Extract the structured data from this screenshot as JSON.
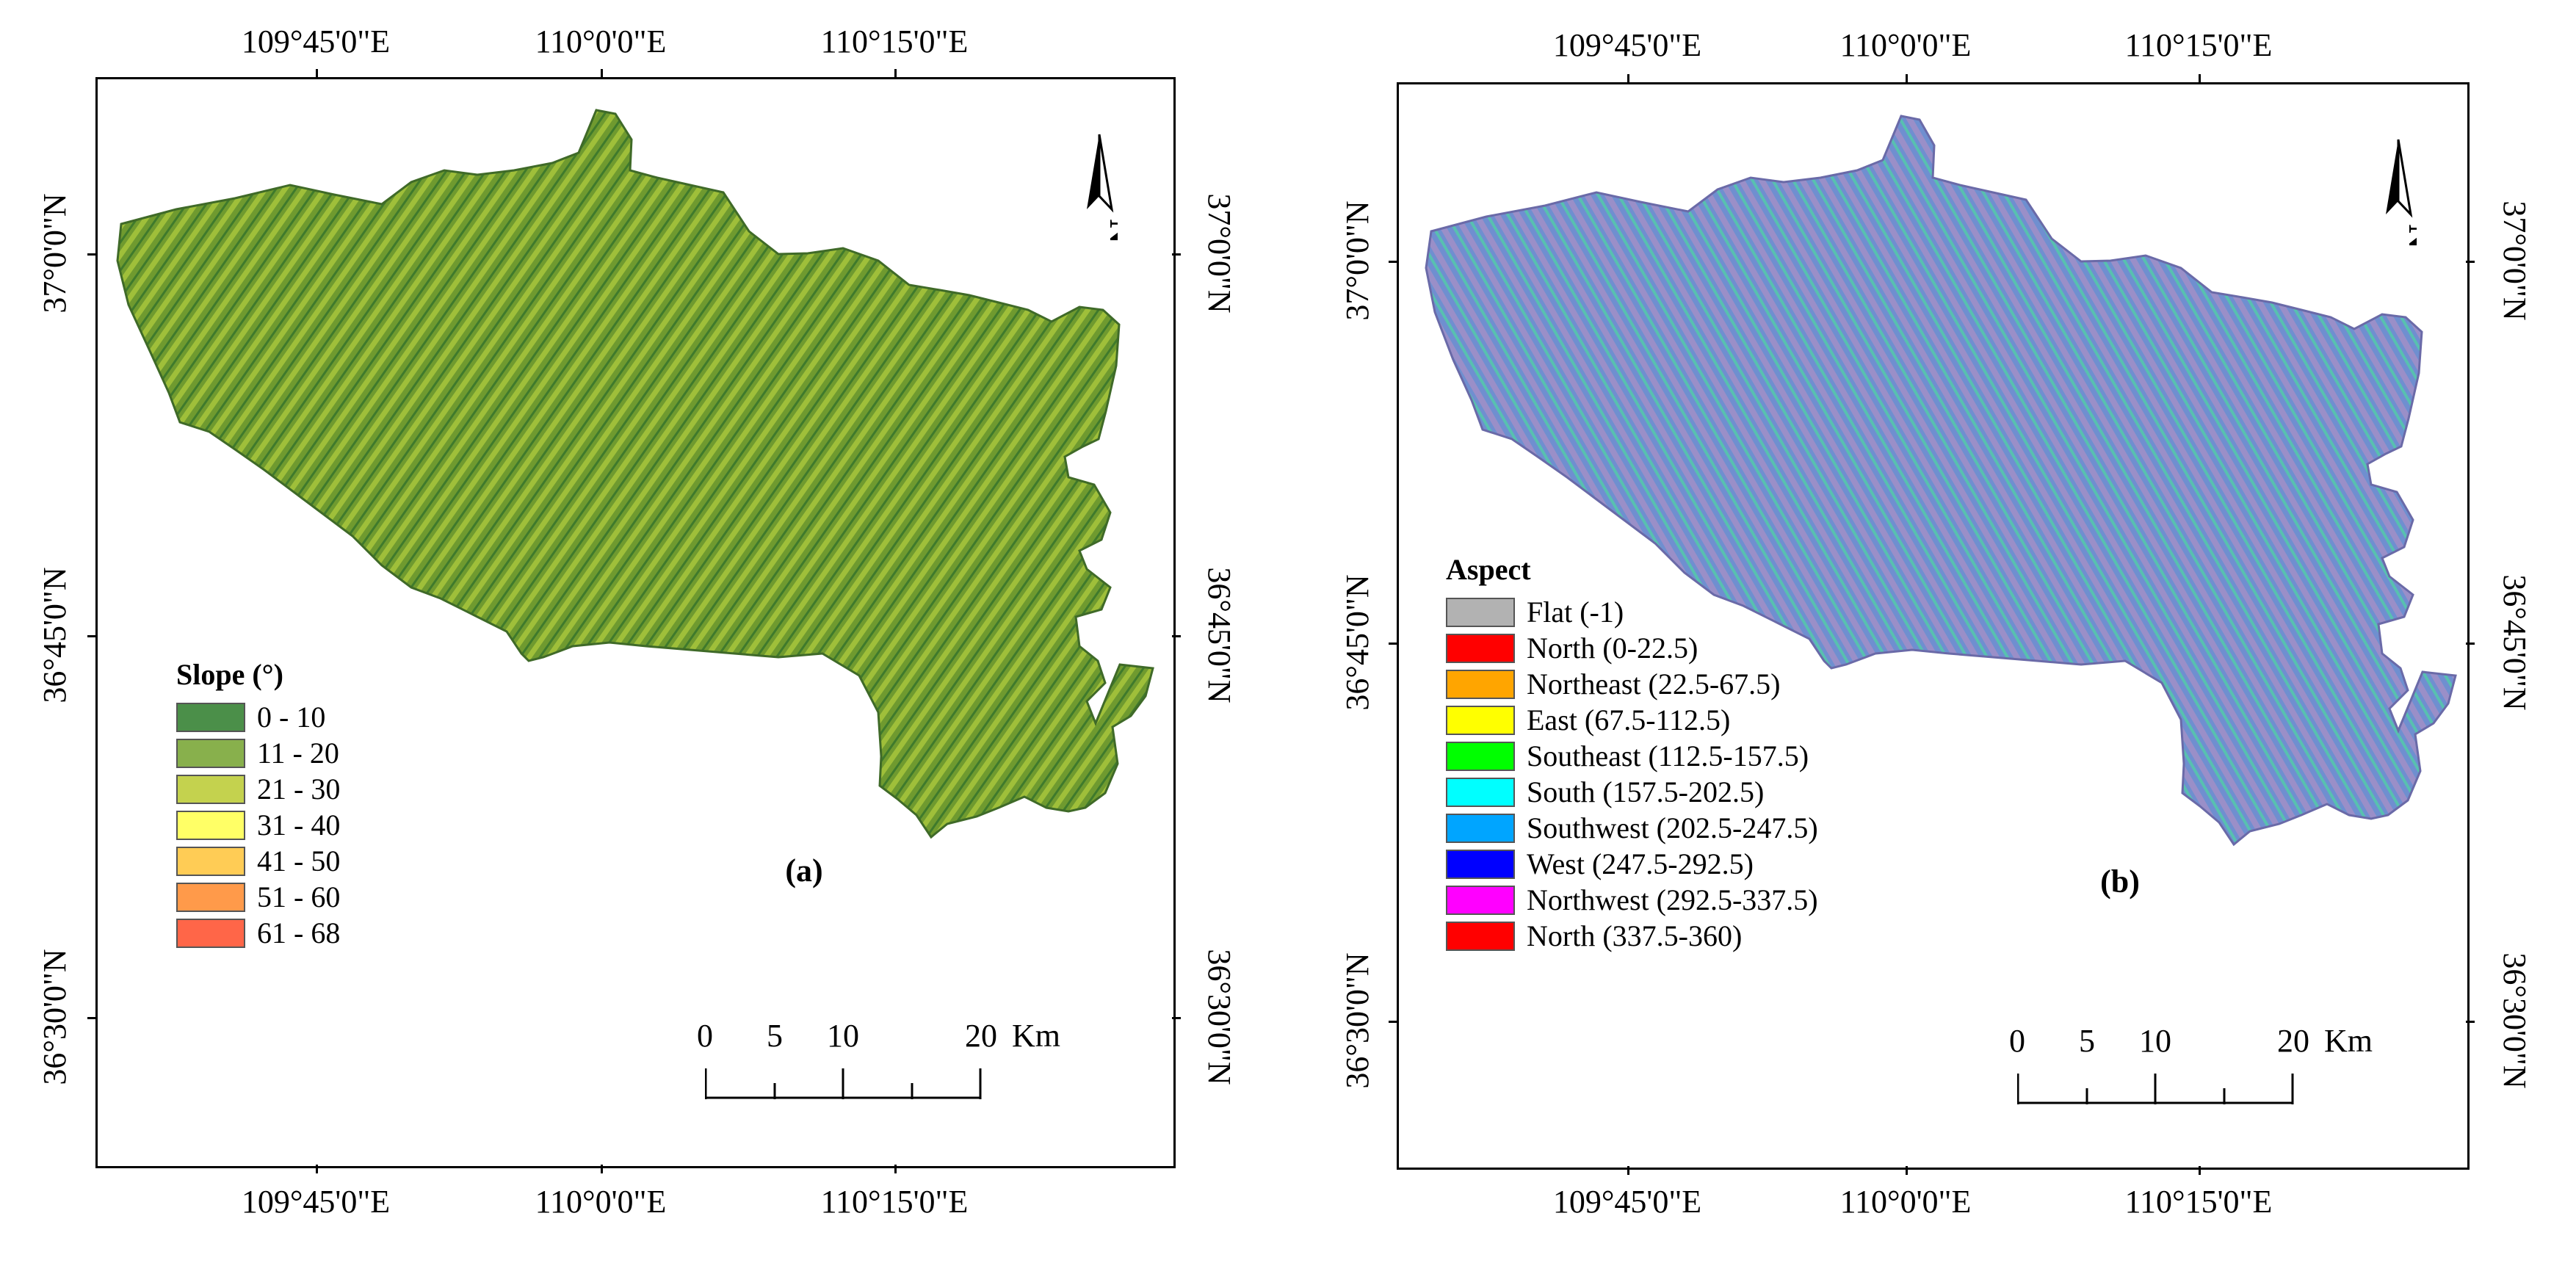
{
  "panels": [
    {
      "id": "a",
      "label": "(a)",
      "top_labels": [
        "109°45'0\"E",
        "110°0'0\"E",
        "110°15'0\"E"
      ],
      "bottom_labels": [
        "109°45'0\"E",
        "110°0'0\"E",
        "110°15'0\"E"
      ],
      "left_labels": [
        "37°0'0\"N",
        "36°45'0\"N",
        "36°30'0\"N"
      ],
      "right_labels": [
        "37°0'0\"N",
        "36°45'0\"N",
        "36°30'0\"N"
      ],
      "legend": {
        "title": "Slope (°)",
        "items": [
          {
            "label": "0 - 10",
            "color": "#4b8f49"
          },
          {
            "label": "11 - 20",
            "color": "#88b04c"
          },
          {
            "label": "21 - 30",
            "color": "#c4d24e"
          },
          {
            "label": "31 - 40",
            "color": "#ffff66"
          },
          {
            "label": "41 - 50",
            "color": "#ffcc55"
          },
          {
            "label": "51 - 60",
            "color": "#ff9a4a"
          },
          {
            "label": "61 - 68",
            "color": "#ff6648"
          }
        ]
      },
      "scale": {
        "ticks": [
          "0",
          "5",
          "10",
          "20"
        ],
        "unit": "Km"
      },
      "map_colors": [
        "#6f9a2f",
        "#9fbf3a",
        "#3f7a2c"
      ]
    },
    {
      "id": "b",
      "label": "(b)",
      "top_labels": [
        "109°45'0\"E",
        "110°0'0\"E",
        "110°15'0\"E"
      ],
      "bottom_labels": [
        "109°45'0\"E",
        "110°0'0\"E",
        "110°15'0\"E"
      ],
      "left_labels": [
        "37°0'0\"N",
        "36°45'0\"N",
        "36°30'0\"N"
      ],
      "right_labels": [
        "37°0'0\"N",
        "36°45'0\"N",
        "36°30'0\"N"
      ],
      "legend": {
        "title": "Aspect",
        "items": [
          {
            "label": "Flat (-1)",
            "color": "#b2b2b2"
          },
          {
            "label": "North (0-22.5)",
            "color": "#ff0000"
          },
          {
            "label": "Northeast (22.5-67.5)",
            "color": "#ffa500"
          },
          {
            "label": "East (67.5-112.5)",
            "color": "#ffff00"
          },
          {
            "label": "Southeast (112.5-157.5)",
            "color": "#00ff00"
          },
          {
            "label": "South (157.5-202.5)",
            "color": "#00ffff"
          },
          {
            "label": "Southwest (202.5-247.5)",
            "color": "#00a5ff"
          },
          {
            "label": "West (247.5-292.5)",
            "color": "#0000ff"
          },
          {
            "label": "Northwest (292.5-337.5)",
            "color": "#ff00ff"
          },
          {
            "label": "North (337.5-360)",
            "color": "#ff0000"
          }
        ]
      },
      "scale": {
        "ticks": [
          "0",
          "5",
          "10",
          "20"
        ],
        "unit": "Km"
      },
      "map_colors": [
        "#6f8fd0",
        "#9a8fc8",
        "#58c0b0"
      ]
    }
  ],
  "north_arrow": {
    "letter": "N"
  }
}
